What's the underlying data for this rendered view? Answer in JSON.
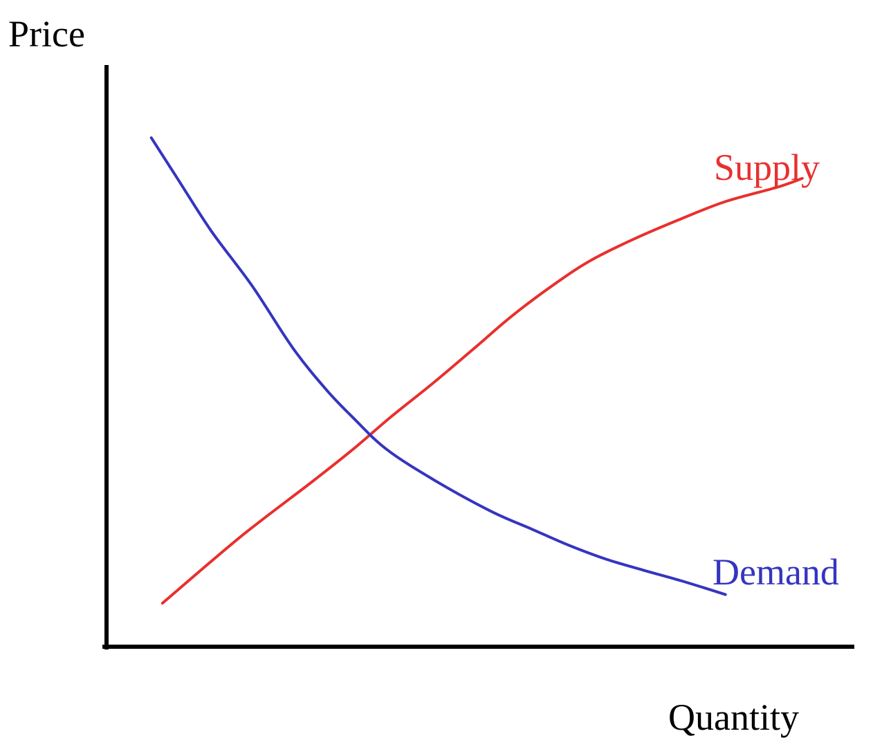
{
  "chart_data": {
    "type": "line",
    "title": "",
    "xlabel": "Quantity",
    "ylabel": "Price",
    "xlim": [
      0,
      100
    ],
    "ylim": [
      0,
      100
    ],
    "grid": false,
    "legend": "none",
    "ticks": "none",
    "series": [
      {
        "name": "Supply",
        "color": "#e8302e",
        "points": [
          [
            7.5,
            7.5
          ],
          [
            18,
            19
          ],
          [
            27.5,
            28.4
          ],
          [
            33,
            34
          ],
          [
            38,
            39.5
          ],
          [
            44,
            45.7
          ],
          [
            49.5,
            51.7
          ],
          [
            54.5,
            57.2
          ],
          [
            60,
            62.5
          ],
          [
            65,
            66.7
          ],
          [
            71,
            70.5
          ],
          [
            77,
            73.8
          ],
          [
            83,
            76.8
          ],
          [
            90,
            79.3
          ],
          [
            93.3,
            80.8
          ]
        ]
      },
      {
        "name": "Demand",
        "color": "#3535c0",
        "points": [
          [
            6,
            87.8
          ],
          [
            9.5,
            80.8
          ],
          [
            14,
            71.8
          ],
          [
            19.5,
            62.3
          ],
          [
            25,
            51.5
          ],
          [
            29.5,
            44.3
          ],
          [
            33,
            39.6
          ],
          [
            37.5,
            34.1
          ],
          [
            44,
            28.7
          ],
          [
            51.5,
            23.4
          ],
          [
            57,
            20.3
          ],
          [
            62,
            17.5
          ],
          [
            67,
            15.1
          ],
          [
            72,
            13.2
          ],
          [
            77,
            11.4
          ],
          [
            83,
            9
          ]
        ]
      }
    ],
    "colors": {
      "axes": "#000000",
      "axis_text": "#000000",
      "background": "#ffffff"
    }
  }
}
